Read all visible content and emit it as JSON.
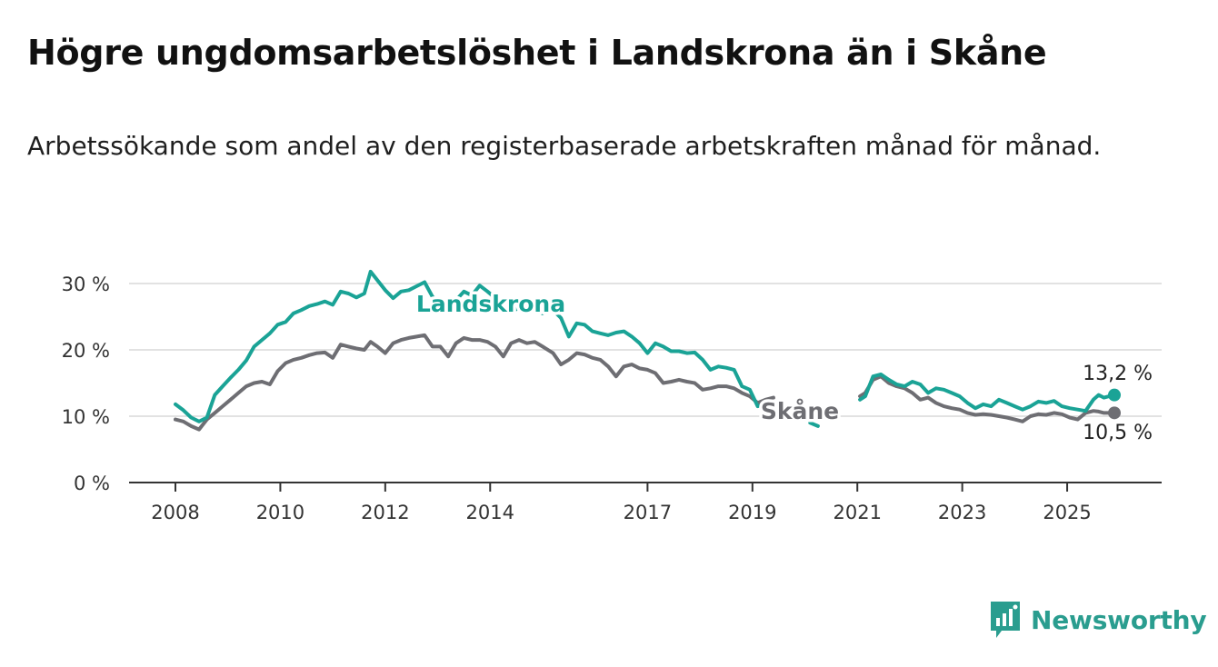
{
  "header": {
    "title": "Högre ungdomsarbetslöshet i Landskrona än i Skåne",
    "subtitle": "Arbetssökande som andel av den registerbaserade arbetskraften månad för månad."
  },
  "brand": {
    "name": "Newsworthy"
  },
  "chart_data": {
    "type": "line",
    "title": "Högre ungdomsarbetslöshet i Landskrona än i Skåne",
    "subtitle": "Arbetssökande som andel av den registerbaserade arbetskraften månad för månad.",
    "xlabel": "",
    "ylabel": "",
    "ylim": [
      0,
      30
    ],
    "yticks": [
      {
        "value": 0,
        "label": "0 %"
      },
      {
        "value": 10,
        "label": "10 %"
      },
      {
        "value": 20,
        "label": "20 %"
      },
      {
        "value": 30,
        "label": "30 %"
      }
    ],
    "xlim": [
      2008,
      2025.9
    ],
    "xticks": [
      {
        "value": 2008,
        "label": "2008"
      },
      {
        "value": 2010,
        "label": "2010"
      },
      {
        "value": 2012,
        "label": "2012"
      },
      {
        "value": 2014,
        "label": "2014"
      },
      {
        "value": 2017,
        "label": "2017"
      },
      {
        "value": 2019,
        "label": "2019"
      },
      {
        "value": 2021,
        "label": "2021"
      },
      {
        "value": 2023,
        "label": "2023"
      },
      {
        "value": 2025,
        "label": "2025"
      }
    ],
    "grid": true,
    "series": [
      {
        "name": "Landskrona",
        "color": "#1aa396",
        "end_label": "13,2 %",
        "points": [
          [
            2008.0,
            11.8
          ],
          [
            2008.15,
            10.9
          ],
          [
            2008.3,
            9.8
          ],
          [
            2008.45,
            9.2
          ],
          [
            2008.6,
            9.8
          ],
          [
            2008.75,
            13.2
          ],
          [
            2008.9,
            14.5
          ],
          [
            2009.05,
            15.8
          ],
          [
            2009.2,
            17.0
          ],
          [
            2009.35,
            18.4
          ],
          [
            2009.5,
            20.5
          ],
          [
            2009.65,
            21.5
          ],
          [
            2009.8,
            22.5
          ],
          [
            2009.95,
            23.8
          ],
          [
            2010.1,
            24.2
          ],
          [
            2010.25,
            25.5
          ],
          [
            2010.4,
            26.0
          ],
          [
            2010.55,
            26.6
          ],
          [
            2010.7,
            26.9
          ],
          [
            2010.85,
            27.3
          ],
          [
            2011.0,
            26.8
          ],
          [
            2011.15,
            28.8
          ],
          [
            2011.3,
            28.5
          ],
          [
            2011.45,
            27.9
          ],
          [
            2011.6,
            28.5
          ],
          [
            2011.72,
            31.8
          ],
          [
            2011.85,
            30.5
          ],
          [
            2012.0,
            29.0
          ],
          [
            2012.15,
            27.8
          ],
          [
            2012.3,
            28.8
          ],
          [
            2012.45,
            29.0
          ],
          [
            2012.6,
            29.6
          ],
          [
            2012.75,
            30.2
          ],
          [
            2012.9,
            28.0
          ],
          [
            2013.05,
            27.2
          ],
          [
            2013.2,
            26.0
          ],
          [
            2013.35,
            27.5
          ],
          [
            2013.5,
            28.8
          ],
          [
            2013.65,
            28.2
          ],
          [
            2013.8,
            29.7
          ],
          [
            2013.95,
            28.8
          ],
          [
            2014.1,
            27.8
          ],
          [
            2014.25,
            26.5
          ],
          [
            2014.4,
            25.8
          ],
          [
            2014.55,
            26.3
          ],
          [
            2014.7,
            26.8
          ],
          [
            2014.85,
            26.0
          ],
          [
            2015.0,
            25.5
          ],
          [
            2015.2,
            26.0
          ],
          [
            2015.35,
            24.8
          ],
          [
            2015.5,
            22.0
          ],
          [
            2015.65,
            24.0
          ],
          [
            2015.8,
            23.8
          ],
          [
            2015.95,
            22.8
          ],
          [
            2016.1,
            22.5
          ],
          [
            2016.25,
            22.2
          ],
          [
            2016.4,
            22.6
          ],
          [
            2016.55,
            22.8
          ],
          [
            2016.7,
            22.0
          ],
          [
            2016.85,
            21.0
          ],
          [
            2017.0,
            19.5
          ],
          [
            2017.15,
            21.0
          ],
          [
            2017.3,
            20.5
          ],
          [
            2017.45,
            19.8
          ],
          [
            2017.6,
            19.8
          ],
          [
            2017.75,
            19.5
          ],
          [
            2017.9,
            19.6
          ],
          [
            2018.05,
            18.5
          ],
          [
            2018.2,
            17.0
          ],
          [
            2018.35,
            17.5
          ],
          [
            2018.5,
            17.3
          ],
          [
            2018.65,
            17.0
          ],
          [
            2018.8,
            14.5
          ],
          [
            2018.95,
            14.0
          ],
          [
            2019.1,
            11.5
          ],
          [
            2019.25,
            11.8
          ],
          [
            2019.4,
            11.2
          ],
          [
            2020.1,
            9.0
          ],
          [
            2020.25,
            8.5
          ],
          [
            2021.05,
            12.5
          ],
          [
            2021.15,
            13.0
          ],
          [
            2021.3,
            16.0
          ],
          [
            2021.45,
            16.3
          ],
          [
            2021.6,
            15.5
          ],
          [
            2021.75,
            14.8
          ],
          [
            2021.9,
            14.5
          ],
          [
            2022.05,
            15.2
          ],
          [
            2022.2,
            14.8
          ],
          [
            2022.35,
            13.5
          ],
          [
            2022.5,
            14.2
          ],
          [
            2022.65,
            14.0
          ],
          [
            2022.8,
            13.5
          ],
          [
            2022.95,
            13.0
          ],
          [
            2023.1,
            12.0
          ],
          [
            2023.25,
            11.2
          ],
          [
            2023.4,
            11.8
          ],
          [
            2023.55,
            11.5
          ],
          [
            2023.7,
            12.5
          ],
          [
            2023.85,
            12.0
          ],
          [
            2024.0,
            11.5
          ],
          [
            2024.15,
            11.0
          ],
          [
            2024.3,
            11.5
          ],
          [
            2024.45,
            12.2
          ],
          [
            2024.6,
            12.0
          ],
          [
            2024.75,
            12.3
          ],
          [
            2024.9,
            11.5
          ],
          [
            2025.05,
            11.2
          ],
          [
            2025.2,
            11.0
          ],
          [
            2025.35,
            10.8
          ],
          [
            2025.5,
            12.5
          ],
          [
            2025.6,
            13.2
          ],
          [
            2025.7,
            12.8
          ],
          [
            2025.8,
            13.0
          ],
          [
            2025.9,
            13.2
          ]
        ]
      },
      {
        "name": "Skåne",
        "color": "#6e6e73",
        "end_label": "10,5 %",
        "points": [
          [
            2008.0,
            9.5
          ],
          [
            2008.15,
            9.2
          ],
          [
            2008.3,
            8.5
          ],
          [
            2008.45,
            8.0
          ],
          [
            2008.6,
            9.5
          ],
          [
            2008.75,
            10.5
          ],
          [
            2008.9,
            11.5
          ],
          [
            2009.05,
            12.5
          ],
          [
            2009.2,
            13.5
          ],
          [
            2009.35,
            14.5
          ],
          [
            2009.5,
            15.0
          ],
          [
            2009.65,
            15.2
          ],
          [
            2009.8,
            14.8
          ],
          [
            2009.95,
            16.8
          ],
          [
            2010.1,
            18.0
          ],
          [
            2010.25,
            18.5
          ],
          [
            2010.4,
            18.8
          ],
          [
            2010.55,
            19.2
          ],
          [
            2010.7,
            19.5
          ],
          [
            2010.85,
            19.6
          ],
          [
            2011.0,
            18.8
          ],
          [
            2011.15,
            20.8
          ],
          [
            2011.3,
            20.5
          ],
          [
            2011.45,
            20.2
          ],
          [
            2011.6,
            20.0
          ],
          [
            2011.72,
            21.2
          ],
          [
            2011.85,
            20.5
          ],
          [
            2012.0,
            19.5
          ],
          [
            2012.15,
            21.0
          ],
          [
            2012.3,
            21.5
          ],
          [
            2012.45,
            21.8
          ],
          [
            2012.6,
            22.0
          ],
          [
            2012.75,
            22.2
          ],
          [
            2012.9,
            20.5
          ],
          [
            2013.05,
            20.5
          ],
          [
            2013.2,
            19.0
          ],
          [
            2013.35,
            21.0
          ],
          [
            2013.5,
            21.8
          ],
          [
            2013.65,
            21.5
          ],
          [
            2013.8,
            21.5
          ],
          [
            2013.95,
            21.2
          ],
          [
            2014.1,
            20.5
          ],
          [
            2014.25,
            19.0
          ],
          [
            2014.4,
            21.0
          ],
          [
            2014.55,
            21.5
          ],
          [
            2014.7,
            21.0
          ],
          [
            2014.85,
            21.2
          ],
          [
            2015.0,
            20.5
          ],
          [
            2015.2,
            19.5
          ],
          [
            2015.35,
            17.8
          ],
          [
            2015.5,
            18.5
          ],
          [
            2015.65,
            19.5
          ],
          [
            2015.8,
            19.3
          ],
          [
            2015.95,
            18.8
          ],
          [
            2016.1,
            18.5
          ],
          [
            2016.25,
            17.5
          ],
          [
            2016.4,
            16.0
          ],
          [
            2016.55,
            17.5
          ],
          [
            2016.7,
            17.8
          ],
          [
            2016.85,
            17.2
          ],
          [
            2017.0,
            17.0
          ],
          [
            2017.15,
            16.5
          ],
          [
            2017.3,
            15.0
          ],
          [
            2017.45,
            15.2
          ],
          [
            2017.6,
            15.5
          ],
          [
            2017.75,
            15.2
          ],
          [
            2017.9,
            15.0
          ],
          [
            2018.05,
            14.0
          ],
          [
            2018.2,
            14.2
          ],
          [
            2018.35,
            14.5
          ],
          [
            2018.5,
            14.5
          ],
          [
            2018.65,
            14.2
          ],
          [
            2018.8,
            13.5
          ],
          [
            2018.95,
            13.0
          ],
          [
            2019.1,
            12.0
          ],
          [
            2019.25,
            12.5
          ],
          [
            2019.4,
            12.8
          ],
          [
            2021.05,
            13.0
          ],
          [
            2021.15,
            13.5
          ],
          [
            2021.3,
            15.5
          ],
          [
            2021.45,
            16.0
          ],
          [
            2021.6,
            15.0
          ],
          [
            2021.75,
            14.5
          ],
          [
            2021.9,
            14.2
          ],
          [
            2022.05,
            13.5
          ],
          [
            2022.2,
            12.5
          ],
          [
            2022.35,
            12.8
          ],
          [
            2022.5,
            12.0
          ],
          [
            2022.65,
            11.5
          ],
          [
            2022.8,
            11.2
          ],
          [
            2022.95,
            11.0
          ],
          [
            2023.1,
            10.5
          ],
          [
            2023.25,
            10.2
          ],
          [
            2023.4,
            10.3
          ],
          [
            2023.55,
            10.2
          ],
          [
            2023.7,
            10.0
          ],
          [
            2023.85,
            9.8
          ],
          [
            2024.0,
            9.5
          ],
          [
            2024.15,
            9.2
          ],
          [
            2024.3,
            10.0
          ],
          [
            2024.45,
            10.3
          ],
          [
            2024.6,
            10.2
          ],
          [
            2024.75,
            10.5
          ],
          [
            2024.9,
            10.3
          ],
          [
            2025.05,
            9.8
          ],
          [
            2025.2,
            9.5
          ],
          [
            2025.35,
            10.5
          ],
          [
            2025.5,
            10.8
          ],
          [
            2025.6,
            10.7
          ],
          [
            2025.7,
            10.5
          ],
          [
            2025.8,
            10.5
          ],
          [
            2025.9,
            10.5
          ]
        ]
      }
    ]
  }
}
